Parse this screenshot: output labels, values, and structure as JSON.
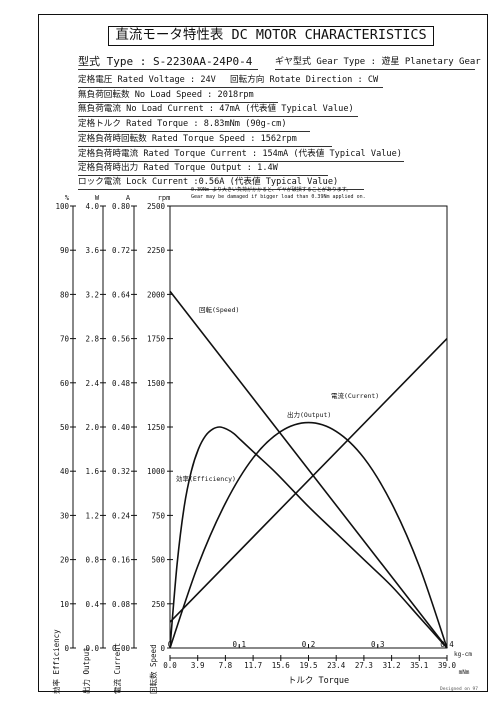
{
  "header": {
    "title": "直流モータ特性表 DC MOTOR CHARACTERISTICS",
    "model": "型式 Type : S-2230AA-24P0-4",
    "gear_type": "ギヤ型式 Gear Type : 遊星 Planetary Gear"
  },
  "specs": {
    "rated_voltage": "定格電圧 Rated Voltage : 24V",
    "rotate_direction": "回転方向 Rotate Direction : CW",
    "no_load_speed": "無負荷回転数 No Load Speed : 2018rpm",
    "no_load_current": "無負荷電流 No Load Current : 47mA (代表値 Typical Value)",
    "rated_torque": "定格トルク Rated Torque : 8.83mNm (90g-cm)",
    "rated_torque_speed": "定格負荷時回転数 Rated Torque Speed : 1562rpm",
    "rated_torque_current": "定格負荷時電流 Rated Torque Current : 154mA (代表値 Typical Value)",
    "rated_torque_output": "定格負荷時出力 Rated Torque Output : 1.4W",
    "lock_current": "ロック電流 Lock Current :0.56A (代表値 Typical Value)"
  },
  "notes": {
    "jp": "0.39Nm より大きい負荷がかかると、ギヤが破損することがあります。",
    "en": "Gear may be damaged if bigger load than 0.39Nm applied on."
  },
  "footer": {
    "designer": "Designed on 97"
  },
  "chart_data": {
    "type": "line",
    "axes": {
      "efficiency": {
        "unit": "%",
        "label": "効率 Efficiency",
        "range": [
          0,
          100
        ],
        "ticks": [
          "0",
          "10",
          "20",
          "30",
          "40",
          "50",
          "60",
          "70",
          "80",
          "90",
          "100"
        ]
      },
      "output": {
        "unit": "W",
        "label": "出力 Output",
        "range": [
          0,
          4.0
        ],
        "ticks": [
          "0.0",
          "0.4",
          "0.8",
          "1.2",
          "1.6",
          "2.0",
          "2.4",
          "2.8",
          "3.2",
          "3.6",
          "4.0"
        ]
      },
      "current": {
        "unit": "A",
        "label": "電流 Current",
        "range": [
          0,
          0.8
        ],
        "ticks": [
          "0.00",
          "0.08",
          "0.16",
          "0.24",
          "0.32",
          "0.40",
          "0.48",
          "0.56",
          "0.64",
          "0.72",
          "0.80"
        ]
      },
      "speed": {
        "unit": "rpm",
        "label": "回転数 Speed",
        "range": [
          0,
          2500
        ],
        "ticks": [
          "0",
          "250",
          "500",
          "750",
          "1000",
          "1250",
          "1500",
          "1750",
          "2000",
          "2250",
          "2500"
        ]
      },
      "torque_kgcm": {
        "unit": "kg-cm",
        "range": [
          0,
          0.4
        ],
        "ticks": [
          "0",
          "0.1",
          "0.2",
          "0.3",
          "0.4"
        ]
      },
      "torque_mnm": {
        "unit": "mNm",
        "label": "トルク Torque",
        "range": [
          0,
          39.0
        ],
        "ticks": [
          "0.0",
          "3.9",
          "7.8",
          "11.7",
          "15.6",
          "19.5",
          "23.4",
          "27.3",
          "31.2",
          "35.1",
          "39.0"
        ]
      }
    },
    "series": [
      {
        "name": "回転(Speed)",
        "axis": "speed",
        "x": [
          0,
          39.0
        ],
        "y": [
          2018,
          0
        ]
      },
      {
        "name": "電流(Current)",
        "axis": "current",
        "x": [
          0,
          39.0
        ],
        "y": [
          0.047,
          0.56
        ]
      },
      {
        "name": "出力(Output)",
        "axis": "output",
        "x": [
          0,
          3.9,
          7.8,
          11.7,
          15.6,
          19.5,
          23.4,
          27.3,
          31.2,
          35.1,
          39.0
        ],
        "y": [
          0,
          0.74,
          1.31,
          1.72,
          1.96,
          2.04,
          1.96,
          1.72,
          1.31,
          0.74,
          0
        ]
      },
      {
        "name": "効率(Efficiency)",
        "axis": "efficiency",
        "x": [
          0,
          1,
          2,
          3,
          4,
          5,
          6,
          7,
          8,
          9,
          10,
          12,
          15,
          19.5,
          23.4,
          27.3,
          31.2,
          35.1,
          39.0
        ],
        "y": [
          0,
          19,
          32,
          40,
          45,
          48,
          49.5,
          50,
          49.5,
          48.5,
          47,
          44,
          39.5,
          32,
          26,
          20,
          14,
          7,
          0
        ]
      }
    ]
  }
}
